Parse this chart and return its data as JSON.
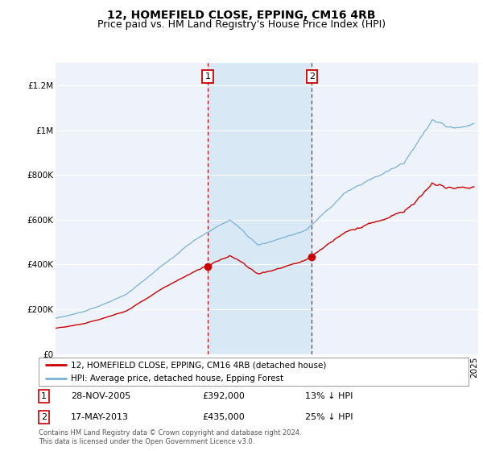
{
  "title": "12, HOMEFIELD CLOSE, EPPING, CM16 4RB",
  "subtitle": "Price paid vs. HM Land Registry's House Price Index (HPI)",
  "ylim": [
    0,
    1300000
  ],
  "yticks": [
    0,
    200000,
    400000,
    600000,
    800000,
    1000000,
    1200000
  ],
  "ytick_labels": [
    "£0",
    "£200K",
    "£400K",
    "£600K",
    "£800K",
    "£1M",
    "£1.2M"
  ],
  "xlim_start": 1995.0,
  "xlim_end": 2025.3,
  "plot_bg_color": "#eef3fb",
  "grid_color": "#ffffff",
  "hpi_color": "#7bafd4",
  "price_color": "#cc0000",
  "sale1_x": 2005.91,
  "sale1_y": 392000,
  "sale2_x": 2013.38,
  "sale2_y": 435000,
  "shade_color": "#d8e8f5",
  "legend_label_price": "12, HOMEFIELD CLOSE, EPPING, CM16 4RB (detached house)",
  "legend_label_hpi": "HPI: Average price, detached house, Epping Forest",
  "footer1": "Contains HM Land Registry data © Crown copyright and database right 2024.",
  "footer2": "This data is licensed under the Open Government Licence v3.0.",
  "table_row1_num": "1",
  "table_row1_date": "28-NOV-2005",
  "table_row1_price": "£392,000",
  "table_row1_change": "13% ↓ HPI",
  "table_row2_num": "2",
  "table_row2_date": "17-MAY-2013",
  "table_row2_price": "£435,000",
  "table_row2_change": "25% ↓ HPI",
  "title_fontsize": 10,
  "subtitle_fontsize": 9,
  "tick_fontsize": 7.5
}
